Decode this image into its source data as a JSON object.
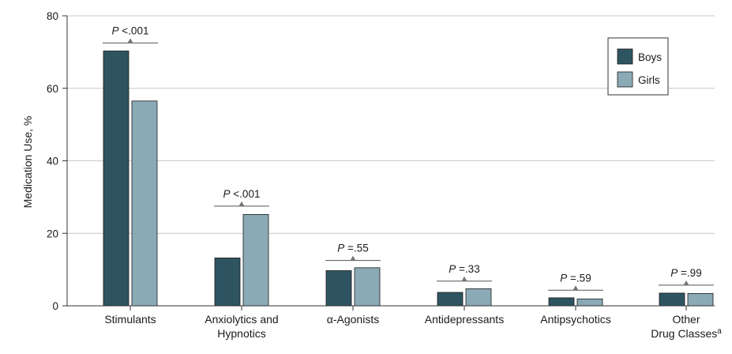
{
  "chart_data": {
    "type": "bar",
    "title": "",
    "xlabel": "",
    "ylabel": "Medication Use, %",
    "ylim": [
      0,
      80
    ],
    "yticks": [
      "0",
      "20",
      "40",
      "60",
      "80"
    ],
    "grid": true,
    "legend_position": "top-right",
    "categories": [
      {
        "lines": [
          "Stimulants"
        ],
        "sup": ""
      },
      {
        "lines": [
          "Anxiolytics and",
          "Hypnotics"
        ],
        "sup": ""
      },
      {
        "lines": [
          "α-Agonists"
        ],
        "sup": ""
      },
      {
        "lines": [
          "Antidepressants"
        ],
        "sup": ""
      },
      {
        "lines": [
          "Antipsychotics"
        ],
        "sup": ""
      },
      {
        "lines": [
          "Other",
          "Drug Classes"
        ],
        "sup": "a"
      }
    ],
    "series": [
      {
        "name": "Boys",
        "color": "#2e5461",
        "values": [
          70.3,
          13.2,
          9.7,
          3.7,
          2.2,
          3.5
        ]
      },
      {
        "name": "Girls",
        "color": "#8aaab6",
        "values": [
          56.5,
          25.2,
          10.5,
          4.7,
          1.9,
          3.4
        ]
      }
    ],
    "annotations": [
      {
        "italic": "P",
        "text": " <.001",
        "level": 72.5
      },
      {
        "italic": "P",
        "text": " <.001",
        "level": 27.5
      },
      {
        "italic": "P",
        "text": " =.55",
        "level": 12.5
      },
      {
        "italic": "P",
        "text": " =.33",
        "level": 6.8
      },
      {
        "italic": "P",
        "text": " =.59",
        "level": 4.3
      },
      {
        "italic": "P",
        "text": " =.99",
        "level": 5.7
      }
    ]
  }
}
